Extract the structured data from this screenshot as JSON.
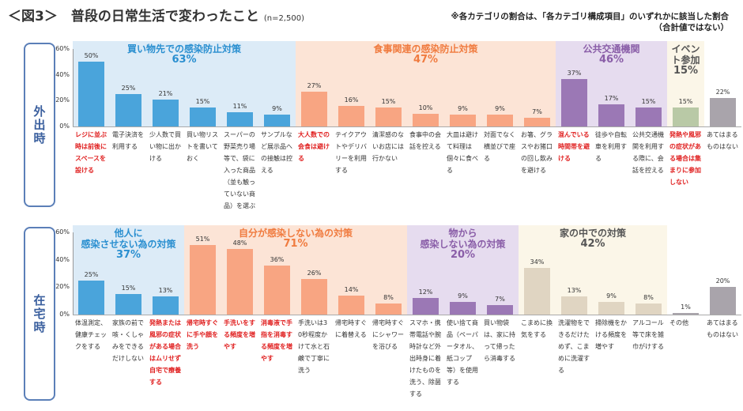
{
  "header": {
    "title": "＜図3＞　普段の日常生活で変わったこと",
    "sample": "(n=2,500)",
    "note_line1": "※各カテゴリの割合は、「各カテゴリ構成項目」のいずれかに該当した割合",
    "note_line2": "（合計値ではない）"
  },
  "chart_data": [
    {
      "type": "bar",
      "section": "外出時",
      "ylim": [
        0,
        60
      ],
      "yticks": [
        "60%",
        "40%",
        "20%",
        "0%"
      ],
      "groups": [
        {
          "label": "買い物先での感染防止対策",
          "pct": "63%",
          "start": 0,
          "count": 6,
          "bg": "#dcebf7",
          "bar": "#4aa4db",
          "text": "#2a8fd0"
        },
        {
          "label": "食事関連の感染防止対策",
          "pct": "47%",
          "start": 6,
          "count": 7,
          "bg": "#fce4d6",
          "bar": "#f8a582",
          "text": "#f07b3f"
        },
        {
          "label": "公共交通機関",
          "pct": "46%",
          "start": 13,
          "count": 3,
          "bg": "#e6dcef",
          "bar": "#9b78b5",
          "text": "#8a5ea8"
        },
        {
          "label": "イベント参加",
          "pct": "15%",
          "start": 16,
          "count": 1,
          "bg": "#fbf6e8",
          "bar": "#b9c9a6",
          "text": "#555555"
        }
      ],
      "categories": [
        "レジに並ぶ時は前後にスペースを設ける",
        "電子決済を利用する",
        "少人数で買い物に出かける",
        "買い物リストを書いておく",
        "スーパーの野菜売り場等で、袋に入った商品（並も触っていない商品）を選ぶ",
        "サンプルなど展示品への接触は控える",
        "大人数での会食は避ける",
        "テイクアウトやデリバリーを利用する",
        "清潔感のないお店には行かない",
        "食事中の会話を控える",
        "大皿は避けて料理は個々に食べる",
        "対面でなく横並びで座る",
        "お箸、グラスやお猪口の回し飲みを避ける",
        "混んでいる時間帯を避ける",
        "徒歩や自転車を利用する",
        "公共交通機関を利用する際に、会話を控える",
        "発熱や風邪の症状がある場合は集まりに参加しない",
        "あてはまるものはない"
      ],
      "highlight": [
        0,
        6,
        13,
        16
      ],
      "values": [
        50,
        25,
        21,
        15,
        11,
        9,
        27,
        16,
        15,
        10,
        9,
        9,
        7,
        37,
        17,
        15,
        15,
        22
      ],
      "value_labels": [
        "50%",
        "25%",
        "21%",
        "15%",
        "11%",
        "9%",
        "27%",
        "16%",
        "15%",
        "10%",
        "9%",
        "9%",
        "7%",
        "37%",
        "17%",
        "15%",
        "15%",
        "22%"
      ]
    },
    {
      "type": "bar",
      "section": "在宅時",
      "ylim": [
        0,
        60
      ],
      "yticks": [
        "60%",
        "40%",
        "20%",
        "0%"
      ],
      "groups": [
        {
          "label": "他人に\n感染させない為の対策",
          "pct": "37%",
          "start": 0,
          "count": 3,
          "bg": "#dcebf7",
          "bar": "#4aa4db",
          "text": "#2a8fd0"
        },
        {
          "label": "自分が感染しない為の対策",
          "pct": "71%",
          "start": 3,
          "count": 6,
          "bg": "#fce4d6",
          "bar": "#f8a582",
          "text": "#f07b3f"
        },
        {
          "label": "物から\n感染しない為の対策",
          "pct": "20%",
          "start": 9,
          "count": 3,
          "bg": "#e6dcef",
          "bar": "#9b78b5",
          "text": "#8a5ea8"
        },
        {
          "label": "家の中での対策",
          "pct": "42%",
          "start": 12,
          "count": 4,
          "bg": "#fbf6e8",
          "bar": "#e0d5c2",
          "text": "#555555"
        }
      ],
      "categories": [
        "体温測定、健康チェックをする",
        "家族の前で咳・くしゃみをできるだけしない",
        "発熱または風邪の症状がある場合はムリせず自宅で療養する",
        "帰宅時すぐに手や顔を洗う",
        "手洗いをする頻度を増やす",
        "消毒液で手指を消毒する頻度を増やす",
        "手洗いは30秒程度かけて水と石鹸で丁寧に洗う",
        "帰宅時すぐに着替える",
        "帰宅時すぐにシャワーを浴びる",
        "スマホ・携帯電話や腕時計など外出時身に着けたものを洗う、除菌する",
        "使い捨て商品（ペーパータオル、紙コップ等）を使用する",
        "買い物袋は、家に持って帰ったら消毒する",
        "こまめに換気をする",
        "洗濯物をできるだけためず、こまめに洗濯する",
        "掃除機をかける頻度を増やす",
        "アルコール等で床を雑巾がけする",
        "その他",
        "あてはまるものはない"
      ],
      "highlight": [
        2,
        3,
        4,
        5
      ],
      "values": [
        25,
        15,
        13,
        51,
        48,
        36,
        26,
        14,
        8,
        12,
        9,
        7,
        34,
        13,
        9,
        8,
        1,
        20
      ],
      "value_labels": [
        "25%",
        "15%",
        "13%",
        "51%",
        "48%",
        "36%",
        "26%",
        "14%",
        "8%",
        "12%",
        "9%",
        "7%",
        "34%",
        "13%",
        "9%",
        "8%",
        "1%",
        "20%"
      ]
    }
  ]
}
